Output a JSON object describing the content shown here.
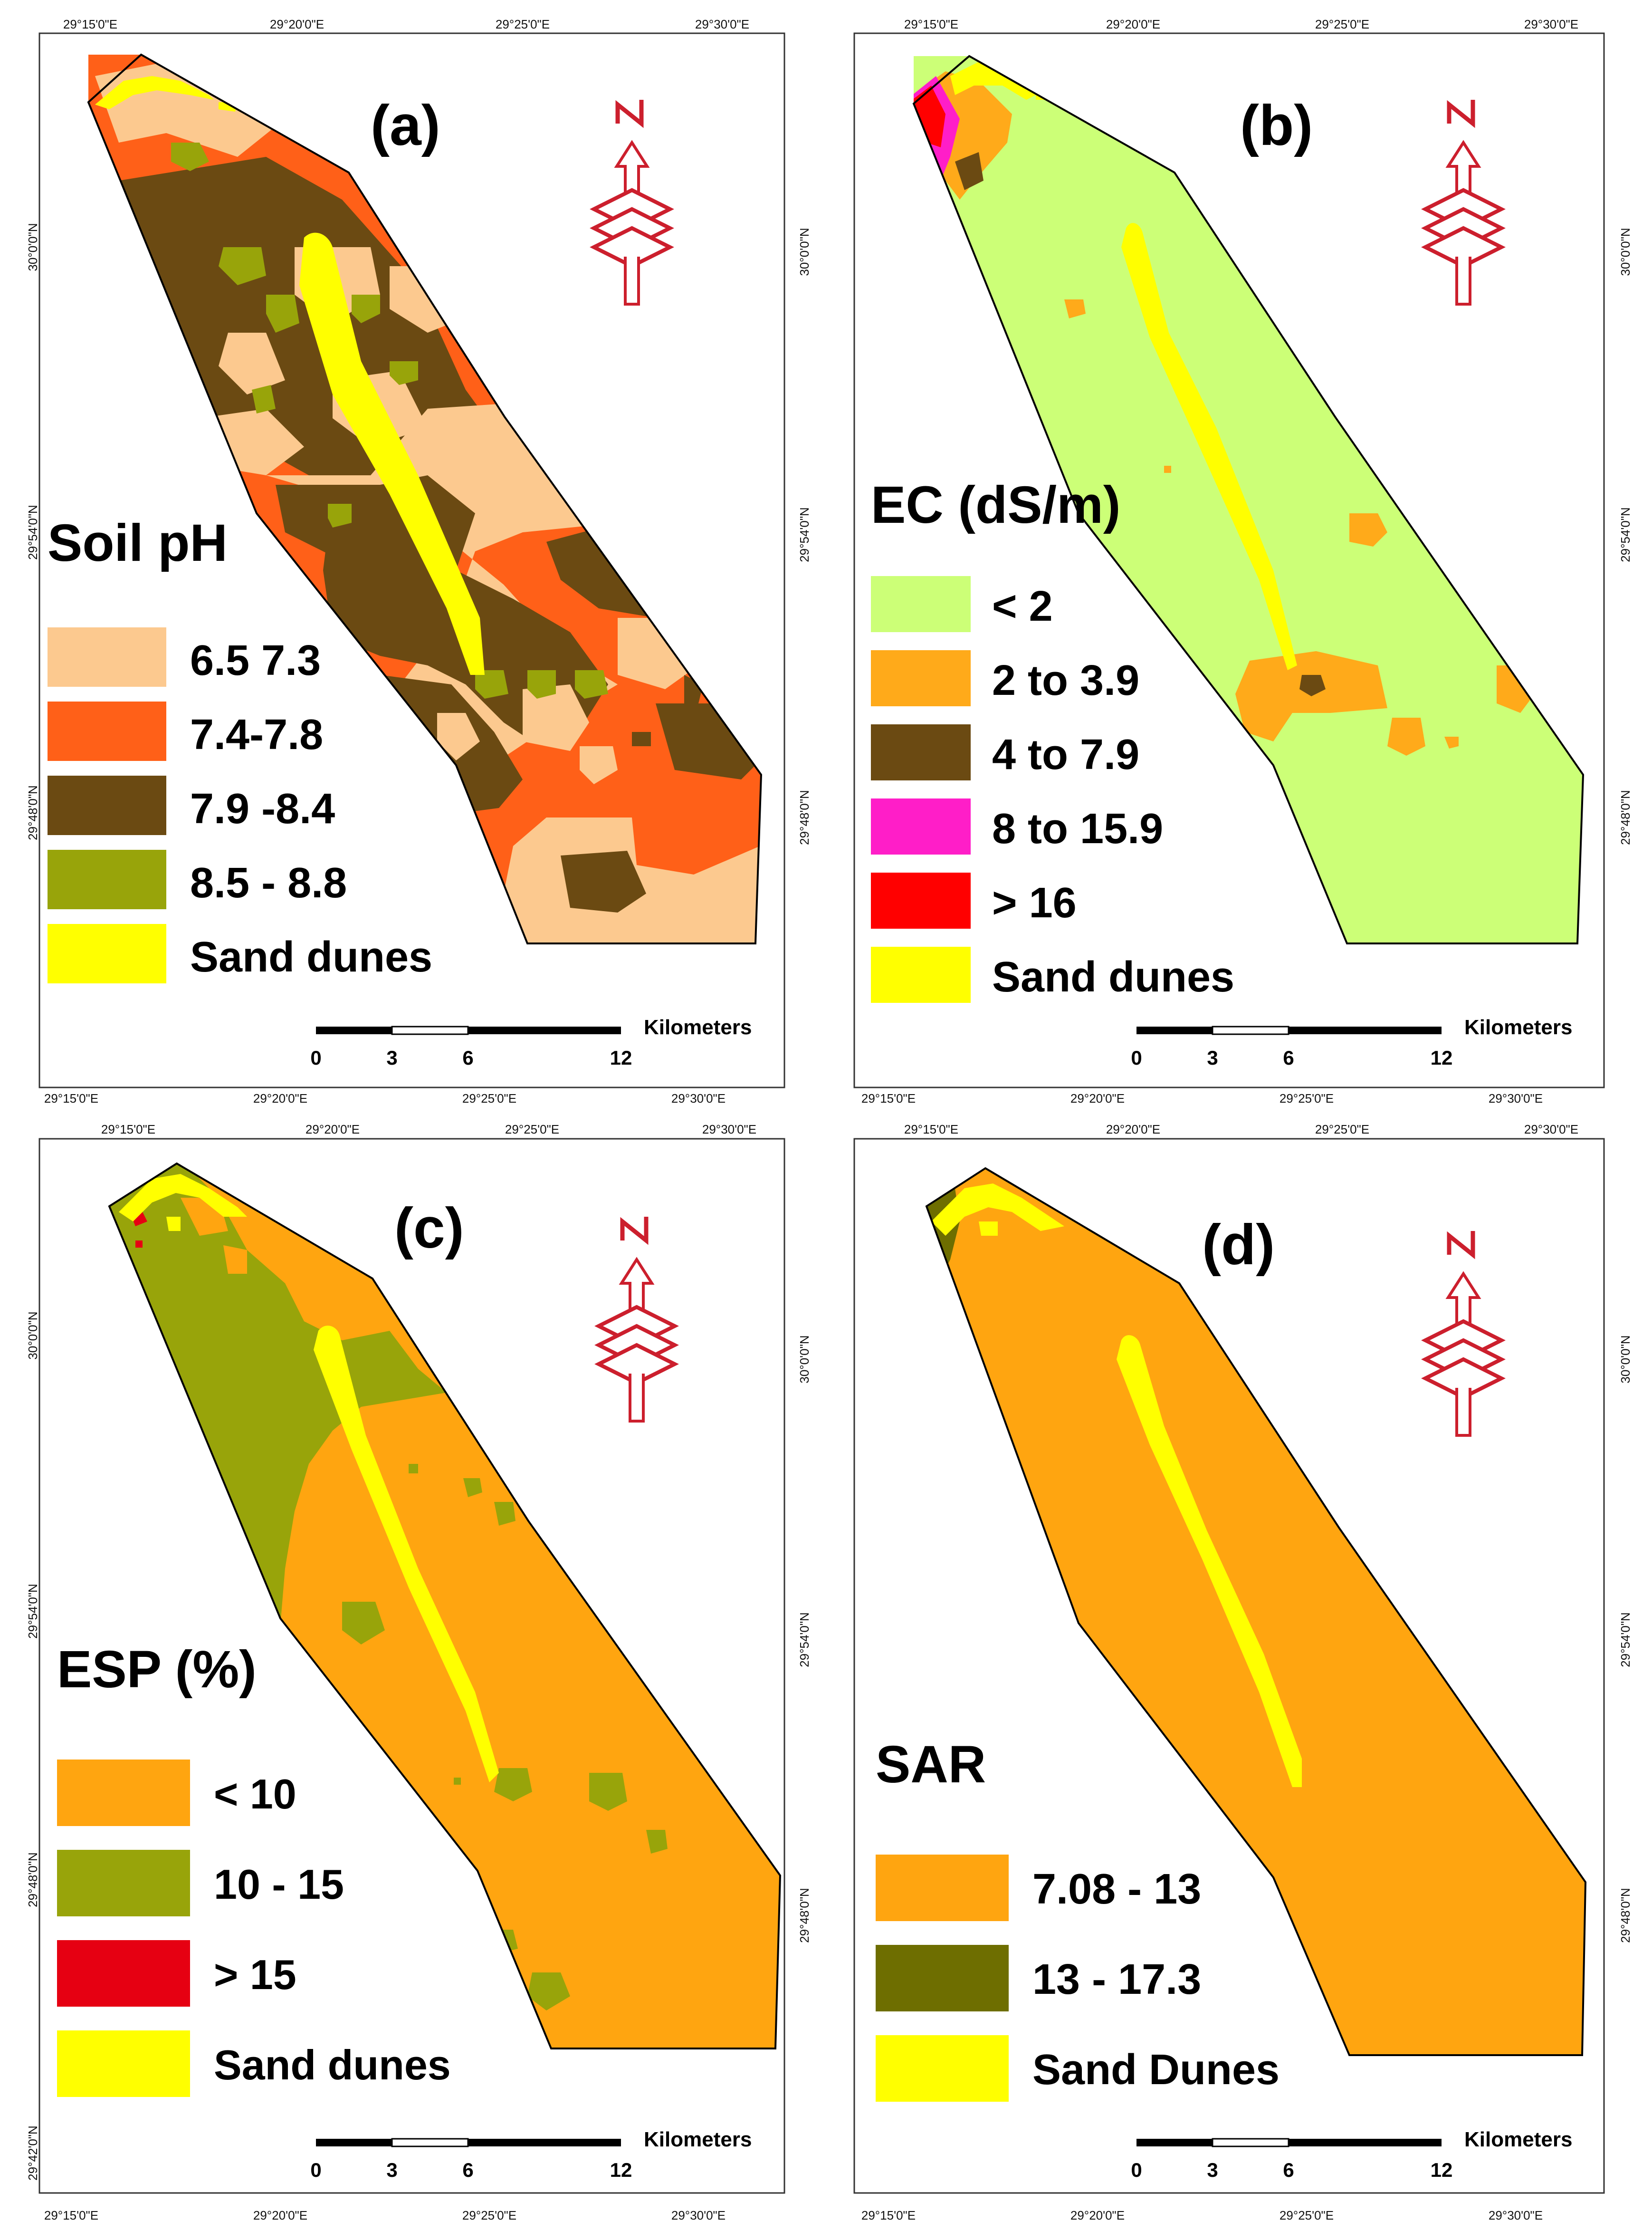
{
  "colors": {
    "sand": "#ffff00",
    "frame": "#000000",
    "north_arrow": "#cc1f2d"
  },
  "panels": [
    {
      "letter": "(a)",
      "legend": {
        "title": "Soil pH",
        "items": [
          {
            "label": "6.5 7.3",
            "color": "#fcc98f"
          },
          {
            "label": "7.4-7.8",
            "color": "#ff6018"
          },
          {
            "label": "7.9 -8.4",
            "color": "#6b4a12"
          },
          {
            "label": "8.5 - 8.8",
            "color": "#98a40a"
          },
          {
            "label": "Sand dunes",
            "color": "#ffff00"
          }
        ]
      },
      "top_ticks": [
        "29°15'0\"E",
        "29°20'0\"E",
        "29°25'0\"E",
        "29°30'0\"E"
      ],
      "bottom_ticks": [
        "29°15'0\"E",
        "29°20'0\"E",
        "29°25'0\"E",
        "29°30'0\"E"
      ],
      "left_ticks": [
        "30°0'0\"N",
        "29°54'0\"N",
        "29°48'0\"N"
      ],
      "right_ticks": []
    },
    {
      "letter": "(b)",
      "legend": {
        "title": "EC (dS/m)",
        "items": [
          {
            "label": "< 2",
            "color": "#ccff77"
          },
          {
            "label": "2 to 3.9",
            "color": "#ffaa1a"
          },
          {
            "label": "4 to 7.9",
            "color": "#6b4a12"
          },
          {
            "label": "8 to 15.9",
            "color": "#ff1ec8"
          },
          {
            "label": "> 16",
            "color": "#ff0000"
          },
          {
            "label": "Sand dunes",
            "color": "#ffff00"
          }
        ]
      },
      "top_ticks": [
        "29°15'0\"E",
        "29°20'0\"E",
        "29°25'0\"E",
        "29°30'0\"E"
      ],
      "bottom_ticks": [
        "29°15'0\"E",
        "29°20'0\"E",
        "29°25'0\"E",
        "29°30'0\"E"
      ],
      "left_ticks": [
        "30°0'0\"N",
        "29°54'0\"N",
        "29°48'0\"N"
      ],
      "right_ticks": [
        "30°0'0\"N",
        "29°54'0\"N",
        "29°48'0\"N"
      ]
    },
    {
      "letter": "(c)",
      "legend": {
        "title": "ESP (%)",
        "items": [
          {
            "label": "< 10",
            "color": "#ffa510"
          },
          {
            "label": "10 - 15",
            "color": "#98a40a"
          },
          {
            "label": "> 15",
            "color": "#e60012"
          },
          {
            "label": "Sand dunes",
            "color": "#ffff00"
          }
        ]
      },
      "top_ticks": [
        "29°15'0\"E",
        "29°20'0\"E",
        "29°25'0\"E",
        "29°30'0\"E"
      ],
      "bottom_ticks": [
        "29°15'0\"E",
        "29°20'0\"E",
        "29°25'0\"E",
        "29°30'0\"E"
      ],
      "left_ticks": [
        "30°0'0\"N",
        "29°54'0\"N",
        "29°48'0\"N",
        "29°42'0\"N"
      ],
      "right_ticks": []
    },
    {
      "letter": "(d)",
      "legend": {
        "title": "SAR",
        "items": [
          {
            "label": "7.08 - 13",
            "color": "#ffa510"
          },
          {
            "label": "13 - 17.3",
            "color": "#6e6e00"
          },
          {
            "label": "Sand Dunes",
            "color": "#ffff00"
          }
        ]
      },
      "top_ticks": [
        "29°15'0\"E",
        "29°20'0\"E",
        "29°25'0\"E",
        "29°30'0\"E"
      ],
      "bottom_ticks": [
        "29°15'0\"E",
        "29°20'0\"E",
        "29°25'0\"E",
        "29°30'0\"E"
      ],
      "left_ticks": [
        "30°0'0\"N",
        "29°54'0\"N",
        "29°48'0\"N"
      ],
      "right_ticks": [
        "30°0'0\"N",
        "29°54'0\"N",
        "29°48'0\"N"
      ]
    }
  ],
  "north_label": "N",
  "scale_bar": {
    "ticks": [
      "0",
      "3",
      "6",
      "12"
    ],
    "unit": "Kilometers"
  }
}
